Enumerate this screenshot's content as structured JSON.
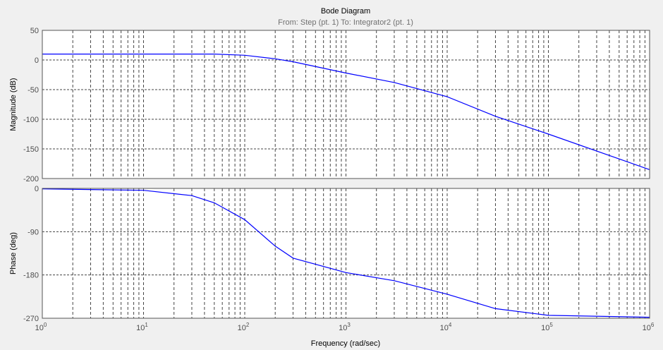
{
  "chart_data": [
    {
      "type": "line",
      "title": "Bode Diagram",
      "subtitle": "From: Step (pt. 1)  To: Integrator2 (pt. 1)",
      "xlabel": "Frequency  (rad/sec)",
      "ylabel": "Magnitude (dB)",
      "xscale": "log",
      "xlim": [
        1,
        1000000
      ],
      "ylim": [
        -200,
        50
      ],
      "yticks": [
        "50",
        "0",
        "-50",
        "-100",
        "-150",
        "-200"
      ],
      "grid": true,
      "line_color": "#0000ff",
      "x": [
        1,
        10,
        50,
        100,
        200,
        300,
        1000,
        3000,
        10000,
        30000,
        100000,
        1000000
      ],
      "y": [
        10,
        10,
        10,
        8,
        2,
        -3,
        -22,
        -38,
        -62,
        -95,
        -125,
        -185
      ]
    },
    {
      "type": "line",
      "xlabel": "Frequency  (rad/sec)",
      "ylabel": "Phase (deg)",
      "xscale": "log",
      "xlim": [
        1,
        1000000
      ],
      "ylim": [
        -270,
        0
      ],
      "yticks": [
        "0",
        "-90",
        "-180",
        "-270"
      ],
      "xticks": [
        "10^0",
        "10^1",
        "10^2",
        "10^3",
        "10^4",
        "10^5",
        "10^6"
      ],
      "grid": true,
      "line_color": "#0000ff",
      "x": [
        1,
        10,
        30,
        50,
        100,
        200,
        300,
        1000,
        3000,
        10000,
        30000,
        100000,
        1000000
      ],
      "y": [
        -1,
        -4,
        -15,
        -30,
        -65,
        -120,
        -145,
        -175,
        -192,
        -220,
        -250,
        -264,
        -268
      ]
    }
  ]
}
